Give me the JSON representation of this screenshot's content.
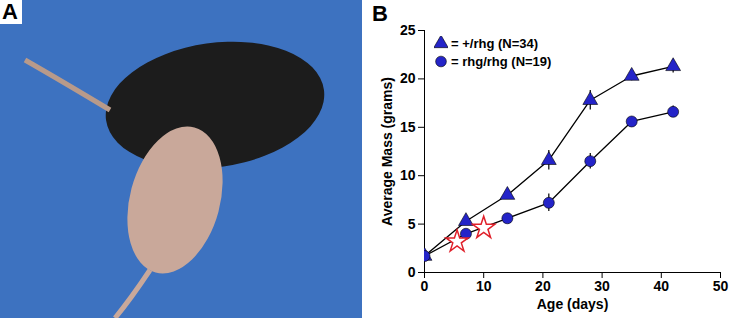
{
  "chart_data": [
    {
      "type": "image",
      "panel": "A",
      "color": "#3d72c0"
    },
    {
      "type": "line",
      "panel": "B",
      "x": [
        0,
        7,
        14,
        21,
        28,
        35,
        42
      ],
      "series": [
        {
          "name": "= +/rhg (N=34)",
          "color": "#2424c8",
          "marker": "triangle",
          "line_style": "solid",
          "values": [
            1.7,
            5.3,
            8.0,
            11.6,
            17.8,
            20.3,
            21.3
          ],
          "errors": [
            0.1,
            0.4,
            0.4,
            1.0,
            1.0,
            0.5,
            0.7
          ]
        },
        {
          "name": "= rhg/rhg (N=19)",
          "color": "#2424c8",
          "marker": "circle",
          "line_style": "solid",
          "values": [
            1.7,
            4.0,
            5.6,
            7.2,
            11.5,
            15.6,
            16.6
          ],
          "errors": [
            0.1,
            0.3,
            0.3,
            0.9,
            0.8,
            0.4,
            0.6
          ]
        }
      ],
      "star_points": {
        "x": [
          5.5,
          10
        ],
        "y": [
          3.2,
          4.6
        ],
        "color": "#e0202a"
      },
      "x_label": "Age (days)",
      "y_label": "Average Mass (grams)",
      "xlim": [
        0,
        50
      ],
      "xticks": [
        0,
        10,
        20,
        30,
        40,
        50
      ],
      "ylim": [
        0,
        25
      ],
      "yticks": [
        0,
        5,
        10,
        15,
        20,
        25
      ],
      "grid": false,
      "legend": "top-left"
    }
  ]
}
